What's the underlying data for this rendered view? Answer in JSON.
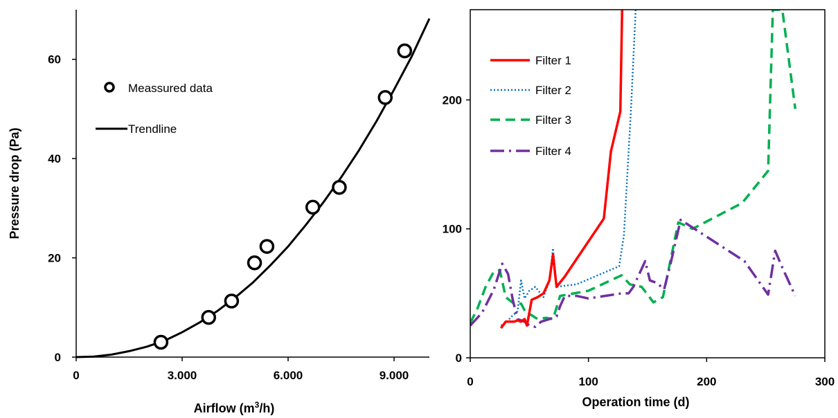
{
  "chart_data": [
    {
      "type": "scatter",
      "xlabel_main": "Airflow (m",
      "xlabel_sup": "3",
      "xlabel_tail": "/h)",
      "ylabel": "Pressure drop (Pa)",
      "xlim": [
        0,
        10000
      ],
      "ylim": [
        0,
        70
      ],
      "x_ticks": [
        {
          "value": 0,
          "label": "0"
        },
        {
          "value": 3000,
          "label": "3.000"
        },
        {
          "value": 6000,
          "label": "6.000"
        },
        {
          "value": 9000,
          "label": "9.000"
        }
      ],
      "y_ticks": [
        {
          "value": 0,
          "label": "0"
        },
        {
          "value": 20,
          "label": "20"
        },
        {
          "value": 40,
          "label": "40"
        },
        {
          "value": 60,
          "label": "60"
        }
      ],
      "grid": false,
      "legend_position": "top-left",
      "series": [
        {
          "name": "Meassured data",
          "marker": "open-circle",
          "color": "#000000",
          "points": [
            {
              "x": 2400,
              "y": 3
            },
            {
              "x": 3750,
              "y": 8
            },
            {
              "x": 4400,
              "y": 11.3
            },
            {
              "x": 5050,
              "y": 19
            },
            {
              "x": 5400,
              "y": 22.3
            },
            {
              "x": 6700,
              "y": 30.2
            },
            {
              "x": 7450,
              "y": 34.2
            },
            {
              "x": 8750,
              "y": 52.3
            },
            {
              "x": 9300,
              "y": 61.7
            }
          ]
        },
        {
          "name": "Trendline",
          "style": "solid",
          "color": "#000000",
          "points": [
            {
              "x": 0,
              "y": 0
            },
            {
              "x": 500,
              "y": 0.1
            },
            {
              "x": 1000,
              "y": 0.5
            },
            {
              "x": 1500,
              "y": 1.2
            },
            {
              "x": 2000,
              "y": 2.1
            },
            {
              "x": 2500,
              "y": 3.3
            },
            {
              "x": 3000,
              "y": 5.0
            },
            {
              "x": 3500,
              "y": 7.0
            },
            {
              "x": 4000,
              "y": 9.3
            },
            {
              "x": 4500,
              "y": 12.0
            },
            {
              "x": 5000,
              "y": 15.0
            },
            {
              "x": 5500,
              "y": 18.5
            },
            {
              "x": 6000,
              "y": 22.3
            },
            {
              "x": 6500,
              "y": 26.6
            },
            {
              "x": 7000,
              "y": 31.2
            },
            {
              "x": 7500,
              "y": 36.2
            },
            {
              "x": 8000,
              "y": 41.6
            },
            {
              "x": 8500,
              "y": 47.5
            },
            {
              "x": 9000,
              "y": 53.9
            },
            {
              "x": 9500,
              "y": 60.6
            },
            {
              "x": 10000,
              "y": 68.2
            }
          ]
        }
      ]
    },
    {
      "type": "line",
      "xlabel": "Operation time (d)",
      "ylabel": "",
      "xlim": [
        0,
        300
      ],
      "ylim": [
        0,
        270
      ],
      "x_ticks": [
        {
          "value": 0,
          "label": "0"
        },
        {
          "value": 100,
          "label": "100"
        },
        {
          "value": 200,
          "label": "200"
        },
        {
          "value": 300,
          "label": "300"
        }
      ],
      "y_ticks": [
        {
          "value": 0,
          "label": "0"
        },
        {
          "value": 100,
          "label": "100"
        },
        {
          "value": 200,
          "label": "200"
        }
      ],
      "grid": false,
      "legend_position": "top-left",
      "series": [
        {
          "name": "Filter 1",
          "color": "#ff0000",
          "style": "solid",
          "points": [
            {
              "x": 26,
              "y": 23
            },
            {
              "x": 30,
              "y": 28
            },
            {
              "x": 37,
              "y": 28
            },
            {
              "x": 40,
              "y": 29
            },
            {
              "x": 43,
              "y": 28
            },
            {
              "x": 46,
              "y": 30
            },
            {
              "x": 48,
              "y": 25
            },
            {
              "x": 52,
              "y": 45
            },
            {
              "x": 57,
              "y": 47
            },
            {
              "x": 62,
              "y": 50
            },
            {
              "x": 67,
              "y": 60
            },
            {
              "x": 70,
              "y": 80
            },
            {
              "x": 73,
              "y": 55
            },
            {
              "x": 80,
              "y": 63
            },
            {
              "x": 113,
              "y": 108
            },
            {
              "x": 119,
              "y": 160
            },
            {
              "x": 127,
              "y": 191
            },
            {
              "x": 128.5,
              "y": 270
            }
          ]
        },
        {
          "name": "Filter 2",
          "color": "#0070c0",
          "style": "dotted",
          "points": [
            {
              "x": 26,
              "y": 25
            },
            {
              "x": 30,
              "y": 27
            },
            {
              "x": 36,
              "y": 33
            },
            {
              "x": 40,
              "y": 36
            },
            {
              "x": 43,
              "y": 60
            },
            {
              "x": 46,
              "y": 46
            },
            {
              "x": 50,
              "y": 52
            },
            {
              "x": 55,
              "y": 55
            },
            {
              "x": 62,
              "y": 47
            },
            {
              "x": 67,
              "y": 60
            },
            {
              "x": 70,
              "y": 85
            },
            {
              "x": 73,
              "y": 55
            },
            {
              "x": 90,
              "y": 57
            },
            {
              "x": 126,
              "y": 71
            },
            {
              "x": 130,
              "y": 95
            },
            {
              "x": 136,
              "y": 193
            },
            {
              "x": 140,
              "y": 270
            }
          ]
        },
        {
          "name": "Filter 3",
          "color": "#00b050",
          "style": "dashed",
          "points": [
            {
              "x": 0,
              "y": 27
            },
            {
              "x": 6,
              "y": 38
            },
            {
              "x": 13,
              "y": 55
            },
            {
              "x": 20,
              "y": 67
            },
            {
              "x": 25,
              "y": 68
            },
            {
              "x": 30,
              "y": 47
            },
            {
              "x": 37,
              "y": 42
            },
            {
              "x": 43,
              "y": 42
            },
            {
              "x": 47,
              "y": 35
            },
            {
              "x": 52,
              "y": 33
            },
            {
              "x": 57,
              "y": 30
            },
            {
              "x": 64,
              "y": 31
            },
            {
              "x": 70,
              "y": 30
            },
            {
              "x": 76,
              "y": 48
            },
            {
              "x": 100,
              "y": 52
            },
            {
              "x": 128,
              "y": 64
            },
            {
              "x": 135,
              "y": 57
            },
            {
              "x": 145,
              "y": 55
            },
            {
              "x": 155,
              "y": 43
            },
            {
              "x": 163,
              "y": 47
            },
            {
              "x": 176,
              "y": 105
            },
            {
              "x": 188,
              "y": 100
            },
            {
              "x": 230,
              "y": 120
            },
            {
              "x": 252,
              "y": 145
            },
            {
              "x": 256,
              "y": 270
            },
            {
              "x": 264,
              "y": 270
            },
            {
              "x": 275,
              "y": 193
            }
          ]
        },
        {
          "name": "Filter 4",
          "color": "#7030a0",
          "style": "dash-dot",
          "points": [
            {
              "x": 0,
              "y": 25
            },
            {
              "x": 10,
              "y": 35
            },
            {
              "x": 20,
              "y": 53
            },
            {
              "x": 27,
              "y": 73
            },
            {
              "x": 32,
              "y": 65
            },
            {
              "x": 36,
              "y": 45
            },
            {
              "x": 40,
              "y": 30
            },
            {
              "x": 46,
              "y": 28
            },
            {
              "x": 50,
              "y": 25
            },
            {
              "x": 55,
              "y": 24
            },
            {
              "x": 60,
              "y": 28
            },
            {
              "x": 67,
              "y": 30
            },
            {
              "x": 73,
              "y": 32
            },
            {
              "x": 76,
              "y": 40
            },
            {
              "x": 80,
              "y": 48
            },
            {
              "x": 90,
              "y": 48
            },
            {
              "x": 100,
              "y": 46
            },
            {
              "x": 128,
              "y": 50
            },
            {
              "x": 134,
              "y": 50
            },
            {
              "x": 138,
              "y": 55
            },
            {
              "x": 148,
              "y": 75
            },
            {
              "x": 152,
              "y": 60
            },
            {
              "x": 158,
              "y": 58
            },
            {
              "x": 164,
              "y": 53
            },
            {
              "x": 170,
              "y": 75
            },
            {
              "x": 178,
              "y": 107
            },
            {
              "x": 232,
              "y": 75
            },
            {
              "x": 252,
              "y": 49
            },
            {
              "x": 258,
              "y": 83
            },
            {
              "x": 264,
              "y": 70
            },
            {
              "x": 275,
              "y": 48
            }
          ]
        }
      ]
    }
  ]
}
